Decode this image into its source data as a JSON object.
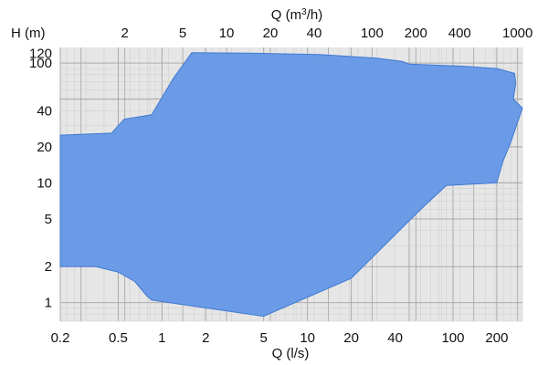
{
  "chart_data": {
    "type": "area",
    "title": "",
    "x_top": {
      "label_prefix": "Q (m",
      "label_sup": "3",
      "label_suffix": "/h)",
      "scale": "log",
      "ticks": [
        2,
        5,
        10,
        20,
        40,
        100,
        200,
        400,
        1000
      ],
      "tick_labels": [
        "2",
        "5",
        "10",
        "20",
        "40",
        "100",
        "200",
        "400",
        "1000"
      ]
    },
    "x_bottom": {
      "label": "Q (l/s)",
      "scale": "log",
      "range": [
        0.2,
        300
      ],
      "ticks": [
        0.2,
        0.5,
        1,
        2,
        5,
        10,
        20,
        40,
        100,
        200
      ],
      "tick_labels": [
        "0.2",
        "0.5",
        "1",
        "2",
        "5",
        "10",
        "20",
        "40",
        "100",
        "200"
      ]
    },
    "y": {
      "label": "H (m)",
      "scale": "log",
      "range": [
        0.7,
        135
      ],
      "ticks": [
        1,
        2,
        5,
        10,
        20,
        40,
        100,
        120
      ],
      "tick_labels": [
        "1",
        "2",
        "5",
        "10",
        "20",
        "40",
        "100",
        "120"
      ]
    },
    "grid": true,
    "series": [
      {
        "fill": "#6b9be6",
        "stroke": "#3f79d2",
        "boundary": [
          [
            0.2,
            25
          ],
          [
            0.45,
            26
          ],
          [
            0.55,
            34
          ],
          [
            0.85,
            37
          ],
          [
            1.2,
            75
          ],
          [
            1.6,
            122
          ],
          [
            4,
            121
          ],
          [
            12,
            118
          ],
          [
            30,
            110
          ],
          [
            45,
            103
          ],
          [
            50,
            98
          ],
          [
            120,
            94
          ],
          [
            200,
            90
          ],
          [
            265,
            82
          ],
          [
            270,
            68
          ],
          [
            260,
            50
          ],
          [
            300,
            42
          ],
          [
            250,
            22
          ],
          [
            220,
            15
          ],
          [
            200,
            10
          ],
          [
            90,
            9.5
          ],
          [
            60,
            6
          ],
          [
            20,
            1.6
          ],
          [
            5,
            0.77
          ],
          [
            0.85,
            1.05
          ],
          [
            0.78,
            1.15
          ],
          [
            0.65,
            1.5
          ],
          [
            0.5,
            1.8
          ],
          [
            0.35,
            2.0
          ],
          [
            0.2,
            2.0
          ]
        ]
      }
    ],
    "colors": {
      "plot_background": "#e6e6e6",
      "grid_major": "#a3a3a3",
      "grid_minor": "#cfcfcf",
      "text": "#111111"
    }
  }
}
